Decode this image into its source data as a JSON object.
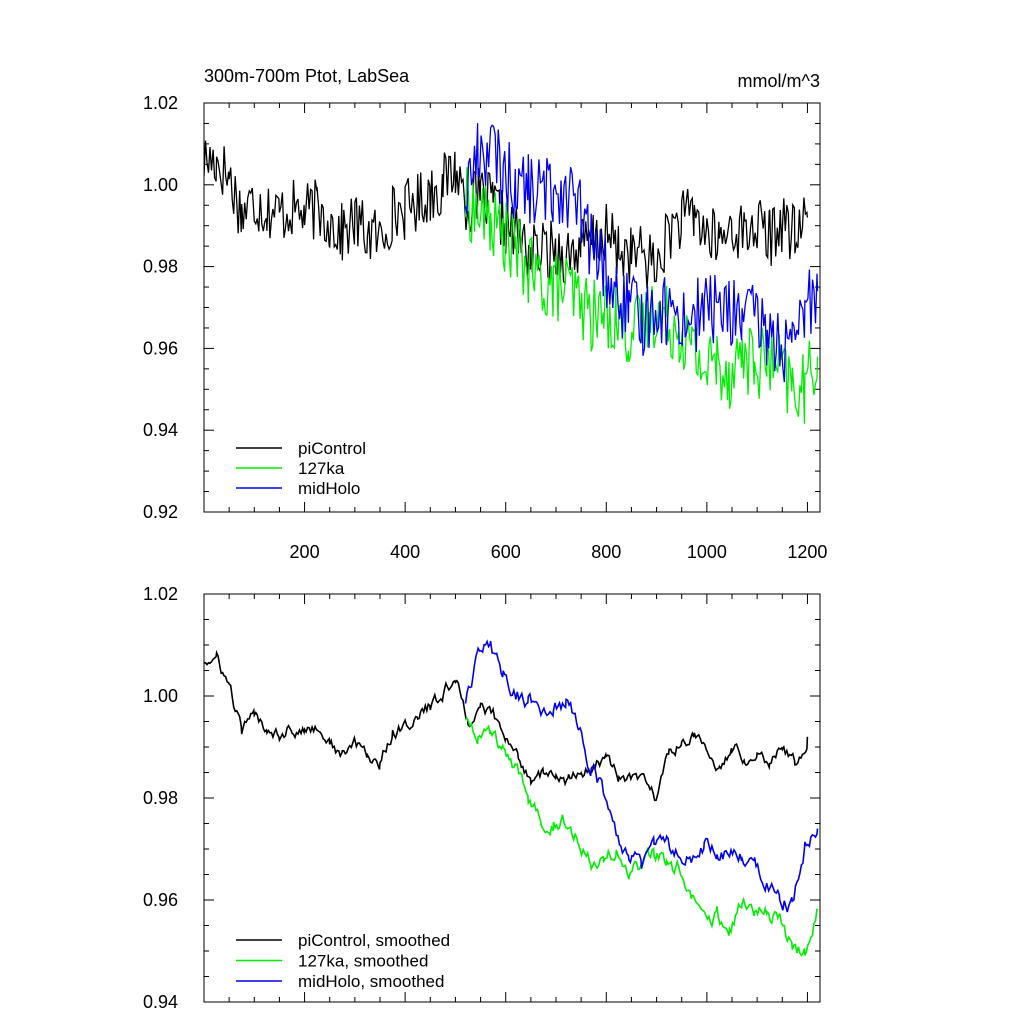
{
  "figure": {
    "title_left": "300m-700m Ptot, LabSea",
    "title_right": "mmol/m^3"
  },
  "colors": {
    "piControl": "#000000",
    "127ka": "#00ee00",
    "midHolo": "#0000ee"
  },
  "chart_data": [
    {
      "type": "line",
      "panel": "top",
      "title": "300m-700m Ptot, LabSea",
      "units": "mmol/m^3",
      "xlabel": "",
      "ylabel": "",
      "xlim": [
        0,
        1225
      ],
      "ylim": [
        0.92,
        1.02
      ],
      "xticks": [
        200,
        400,
        600,
        800,
        1000,
        1200
      ],
      "xtick_labels": [
        "200",
        "400",
        "600",
        "800",
        "1000",
        "1200"
      ],
      "yticks": [
        0.92,
        0.94,
        0.96,
        0.98,
        1.0,
        1.02
      ],
      "ytick_labels": [
        "0.92",
        "0.94",
        "0.96",
        "0.98",
        "1.00",
        "1.02"
      ],
      "legend_position": "bottom-left",
      "series": [
        {
          "name": "piControl",
          "color_key": "piControl",
          "x": [
            0,
            25,
            50,
            75,
            100,
            125,
            150,
            175,
            200,
            225,
            250,
            275,
            300,
            325,
            350,
            375,
            400,
            425,
            450,
            475,
            500,
            525,
            550,
            575,
            600,
            625,
            650,
            675,
            700,
            725,
            750,
            775,
            800,
            825,
            850,
            875,
            900,
            925,
            950,
            975,
            1000,
            1025,
            1050,
            1075,
            1100,
            1125,
            1150,
            1175,
            1200
          ],
          "values": [
            1.006,
            1.006,
            1.002,
            0.993,
            0.996,
            0.994,
            0.993,
            0.994,
            0.993,
            0.994,
            0.991,
            0.988,
            0.991,
            0.988,
            0.987,
            0.993,
            0.994,
            0.996,
            0.998,
            1.0,
            1.004,
            0.995,
            0.997,
            0.995,
            0.99,
            0.987,
            0.983,
            0.984,
            0.984,
            0.983,
            0.985,
            0.986,
            0.988,
            0.984,
            0.983,
            0.983,
            0.979,
            0.989,
            0.991,
            0.993,
            0.988,
            0.986,
            0.99,
            0.988,
            0.99,
            0.987,
            0.991,
            0.987,
            0.992
          ]
        },
        {
          "name": "127ka",
          "color_key": "127ka",
          "x": [
            520,
            545,
            570,
            595,
            620,
            645,
            670,
            695,
            720,
            745,
            770,
            795,
            820,
            845,
            870,
            895,
            920,
            945,
            970,
            995,
            1020,
            1045,
            1070,
            1095,
            1120,
            1145,
            1170,
            1195,
            1220
          ],
          "values": [
            0.996,
            0.993,
            0.991,
            0.988,
            0.984,
            0.979,
            0.976,
            0.975,
            0.975,
            0.972,
            0.968,
            0.968,
            0.968,
            0.964,
            0.965,
            0.969,
            0.967,
            0.965,
            0.96,
            0.955,
            0.957,
            0.954,
            0.959,
            0.956,
            0.957,
            0.955,
            0.95,
            0.95,
            0.958
          ]
        },
        {
          "name": "midHolo",
          "color_key": "midHolo",
          "x": [
            520,
            545,
            570,
            595,
            620,
            645,
            670,
            695,
            720,
            745,
            770,
            795,
            820,
            845,
            870,
            895,
            920,
            945,
            970,
            995,
            1020,
            1045,
            1070,
            1095,
            1120,
            1145,
            1170,
            1195,
            1220
          ],
          "values": [
            0.998,
            1.008,
            1.009,
            1.003,
            1.0,
            0.999,
            0.998,
            0.999,
            0.999,
            0.994,
            0.985,
            0.98,
            0.972,
            0.97,
            0.966,
            0.971,
            0.969,
            0.968,
            0.967,
            0.97,
            0.97,
            0.969,
            0.968,
            0.967,
            0.964,
            0.961,
            0.958,
            0.97,
            0.974
          ]
        }
      ]
    },
    {
      "type": "line",
      "panel": "bottom",
      "title": "",
      "xlabel": "",
      "ylabel": "",
      "xlim": [
        0,
        1225
      ],
      "ylim": [
        0.94,
        1.02
      ],
      "xticks": [
        200,
        400,
        600,
        800,
        1000,
        1200
      ],
      "xtick_labels": [
        "",
        "",
        "",
        "",
        "",
        ""
      ],
      "yticks": [
        0.94,
        0.96,
        0.98,
        1.0,
        1.02
      ],
      "ytick_labels": [
        "0.94",
        "0.96",
        "0.98",
        "1.00",
        "1.02"
      ],
      "legend_position": "bottom-left",
      "series": [
        {
          "name": "piControl, smoothed",
          "color_key": "piControl",
          "x": [
            0,
            25,
            50,
            75,
            100,
            125,
            150,
            175,
            200,
            225,
            250,
            275,
            300,
            325,
            350,
            375,
            400,
            425,
            450,
            475,
            500,
            525,
            550,
            575,
            600,
            625,
            650,
            675,
            700,
            725,
            750,
            775,
            800,
            825,
            850,
            875,
            900,
            925,
            950,
            975,
            1000,
            1025,
            1050,
            1075,
            1100,
            1125,
            1150,
            1175,
            1200
          ],
          "values": [
            1.007,
            1.007,
            1.002,
            0.993,
            0.996,
            0.994,
            0.993,
            0.994,
            0.993,
            0.994,
            0.991,
            0.988,
            0.991,
            0.988,
            0.987,
            0.993,
            0.994,
            0.996,
            0.998,
            1.0,
            1.004,
            0.995,
            0.998,
            0.996,
            0.991,
            0.988,
            0.984,
            0.985,
            0.984,
            0.983,
            0.985,
            0.986,
            0.988,
            0.984,
            0.983,
            0.983,
            0.98,
            0.989,
            0.991,
            0.993,
            0.988,
            0.986,
            0.99,
            0.988,
            0.99,
            0.987,
            0.991,
            0.987,
            0.992
          ]
        },
        {
          "name": "127ka, smoothed",
          "color_key": "127ka",
          "x": [
            520,
            545,
            570,
            595,
            620,
            645,
            670,
            695,
            720,
            745,
            770,
            795,
            820,
            845,
            870,
            895,
            920,
            945,
            970,
            995,
            1020,
            1045,
            1070,
            1095,
            1120,
            1145,
            1170,
            1195,
            1220
          ],
          "values": [
            0.996,
            0.993,
            0.992,
            0.989,
            0.985,
            0.98,
            0.977,
            0.976,
            0.975,
            0.972,
            0.969,
            0.969,
            0.969,
            0.965,
            0.966,
            0.969,
            0.967,
            0.966,
            0.96,
            0.955,
            0.957,
            0.955,
            0.959,
            0.957,
            0.958,
            0.956,
            0.95,
            0.95,
            0.958
          ]
        },
        {
          "name": "midHolo, smoothed",
          "color_key": "midHolo",
          "x": [
            520,
            545,
            570,
            595,
            620,
            645,
            670,
            695,
            720,
            745,
            770,
            795,
            820,
            845,
            870,
            895,
            920,
            945,
            970,
            995,
            1020,
            1045,
            1070,
            1095,
            1120,
            1145,
            1170,
            1195,
            1220
          ],
          "values": [
            0.999,
            1.009,
            1.009,
            1.004,
            1.001,
            0.999,
            0.998,
            0.999,
            0.999,
            0.995,
            0.986,
            0.981,
            0.972,
            0.97,
            0.966,
            0.971,
            0.97,
            0.969,
            0.968,
            0.97,
            0.97,
            0.969,
            0.968,
            0.967,
            0.964,
            0.961,
            0.959,
            0.97,
            0.974
          ]
        }
      ]
    }
  ]
}
